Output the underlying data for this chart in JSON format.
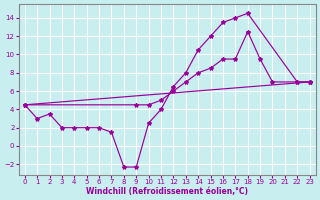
{
  "background_color": "#c8eef0",
  "grid_color": "#ffffff",
  "line_color": "#990099",
  "xlabel": "Windchill (Refroidissement éolien,°C)",
  "xlim": [
    -0.5,
    23.5
  ],
  "ylim": [
    -3.2,
    15.5
  ],
  "xticks": [
    0,
    1,
    2,
    3,
    4,
    5,
    6,
    7,
    8,
    9,
    10,
    11,
    12,
    13,
    14,
    15,
    16,
    17,
    18,
    19,
    20,
    21,
    22,
    23
  ],
  "yticks": [
    -2,
    0,
    2,
    4,
    6,
    8,
    10,
    12,
    14
  ],
  "line1_x": [
    0,
    1,
    2,
    3,
    4,
    5,
    6,
    7,
    8,
    9,
    10,
    11,
    12,
    13,
    14,
    15,
    16,
    17,
    18,
    22,
    23
  ],
  "line1_y": [
    4.5,
    3.0,
    3.5,
    2.0,
    2.0,
    2.0,
    2.0,
    1.5,
    -2.3,
    -2.3,
    2.5,
    4.0,
    6.5,
    8.0,
    10.5,
    12.0,
    13.5,
    14.0,
    14.5,
    7.0,
    7.0
  ],
  "line2_x": [
    0,
    9,
    10,
    11,
    12,
    13,
    14,
    15,
    16,
    17,
    18,
    19,
    20,
    22,
    23
  ],
  "line2_y": [
    4.5,
    4.5,
    4.5,
    5.0,
    6.0,
    7.0,
    8.0,
    8.5,
    9.5,
    9.5,
    12.5,
    9.5,
    7.0,
    7.0,
    7.0
  ],
  "line3_x": [
    0,
    23
  ],
  "line3_y": [
    4.5,
    7.0
  ]
}
